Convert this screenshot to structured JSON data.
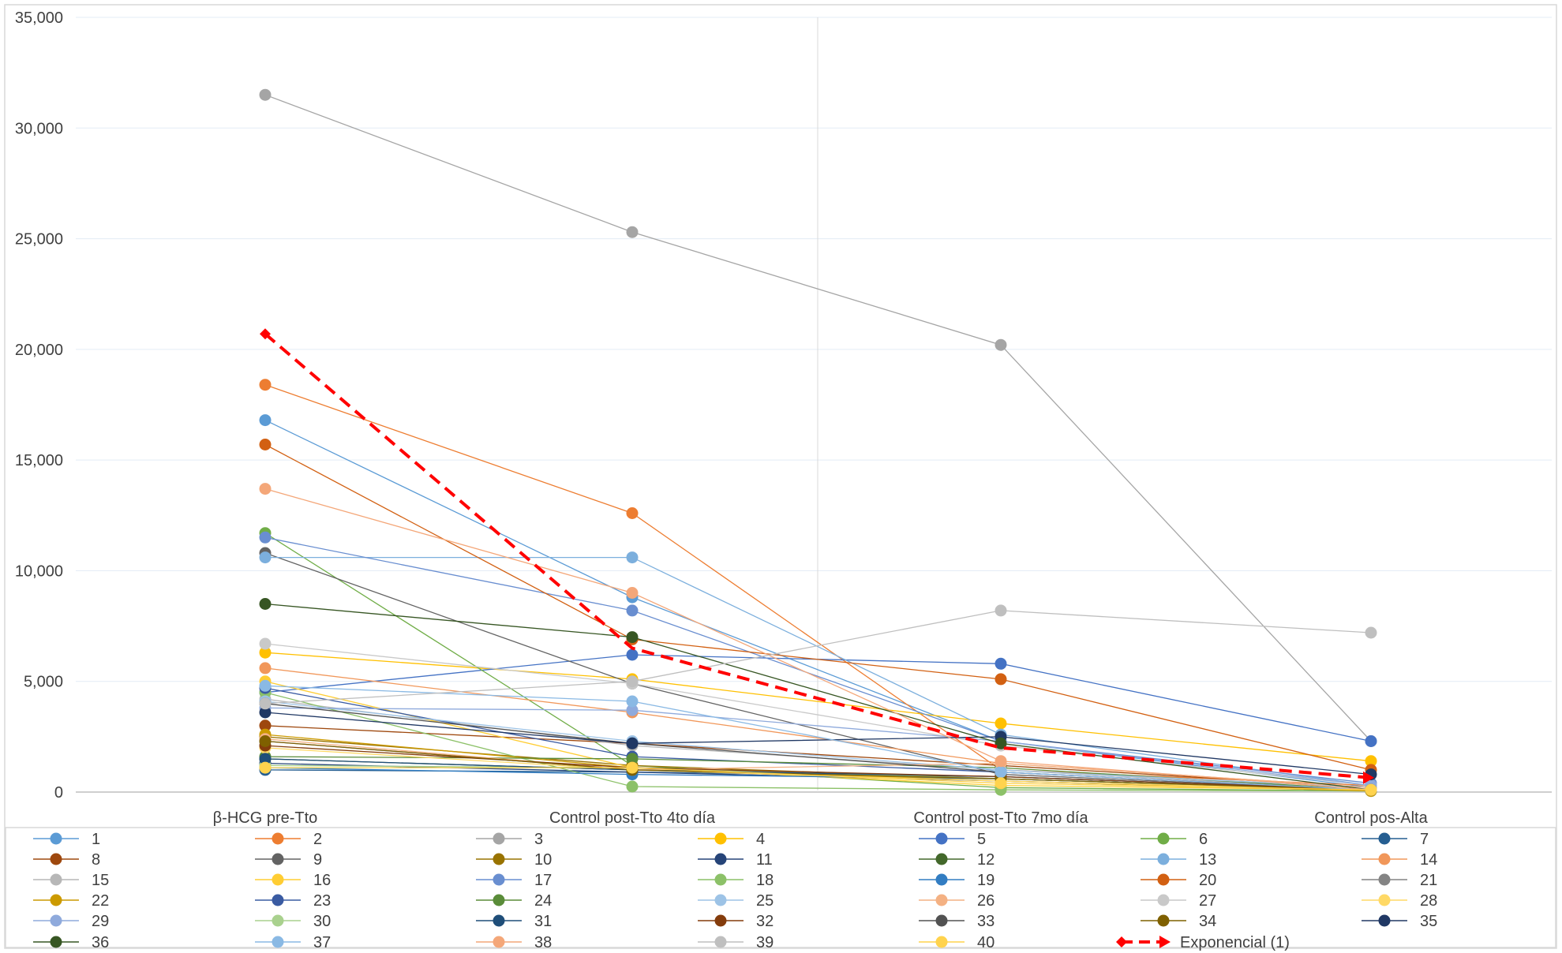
{
  "chart_data": {
    "type": "line",
    "title": "",
    "xlabel": "",
    "ylabel": "",
    "categories": [
      "β-HCG pre-Tto",
      "Control post-Tto 4to día",
      "Control post-Tto 7mo día",
      "Control pos-Alta"
    ],
    "y_ticks": [
      "0",
      "5,000",
      "10,000",
      "15,000",
      "20,000",
      "25,000",
      "30,000",
      "35,000"
    ],
    "ylim": [
      0,
      35000
    ],
    "grid": "horizontal",
    "legend_position": "bottom",
    "series": [
      {
        "name": "1",
        "color": "#5b9bd5",
        "values": [
          16800,
          8800,
          2300,
          200
        ]
      },
      {
        "name": "2",
        "color": "#ed7d31",
        "values": [
          18400,
          12600,
          1000,
          300
        ]
      },
      {
        "name": "3",
        "color": "#a5a5a5",
        "values": [
          31500,
          25300,
          20200,
          2300
        ]
      },
      {
        "name": "4",
        "color": "#ffc000",
        "values": [
          6300,
          5100,
          3100,
          1400
        ]
      },
      {
        "name": "5",
        "color": "#4472c4",
        "values": [
          4500,
          6200,
          5800,
          2300
        ]
      },
      {
        "name": "6",
        "color": "#70ad47",
        "values": [
          11700,
          1200,
          200,
          50
        ]
      },
      {
        "name": "7",
        "color": "#255e91",
        "values": [
          1000,
          900,
          700,
          100
        ]
      },
      {
        "name": "8",
        "color": "#9e480e",
        "values": [
          3000,
          2200,
          1200,
          200
        ]
      },
      {
        "name": "9",
        "color": "#636363",
        "values": [
          10800,
          4900,
          800,
          100
        ]
      },
      {
        "name": "10",
        "color": "#997300",
        "values": [
          2500,
          1200,
          600,
          100
        ]
      },
      {
        "name": "11",
        "color": "#264478",
        "values": [
          1300,
          900,
          500,
          50
        ]
      },
      {
        "name": "12",
        "color": "#43682b",
        "values": [
          1500,
          1000,
          600,
          100
        ]
      },
      {
        "name": "13",
        "color": "#7cafdd",
        "values": [
          10600,
          10600,
          2600,
          300
        ]
      },
      {
        "name": "14",
        "color": "#f1975a",
        "values": [
          5600,
          3600,
          1300,
          200
        ]
      },
      {
        "name": "15",
        "color": "#b7b7b7",
        "values": [
          4200,
          2100,
          1000,
          100
        ]
      },
      {
        "name": "16",
        "color": "#ffcd33",
        "values": [
          5000,
          1100,
          300,
          100
        ]
      },
      {
        "name": "17",
        "color": "#698ed0",
        "values": [
          11500,
          8200,
          2300,
          400
        ]
      },
      {
        "name": "18",
        "color": "#8cc168",
        "values": [
          4500,
          250,
          100,
          50
        ]
      },
      {
        "name": "19",
        "color": "#327dc2",
        "values": [
          1100,
          800,
          600,
          100
        ]
      },
      {
        "name": "20",
        "color": "#d26012",
        "values": [
          15700,
          6900,
          5100,
          1000
        ]
      },
      {
        "name": "21",
        "color": "#848484",
        "values": [
          2300,
          1000,
          500,
          100
        ]
      },
      {
        "name": "22",
        "color": "#cc9a00",
        "values": [
          2600,
          1100,
          500,
          50
        ]
      },
      {
        "name": "23",
        "color": "#3a5ba2",
        "values": [
          4700,
          1600,
          900,
          100
        ]
      },
      {
        "name": "24",
        "color": "#5a8c39",
        "values": [
          1600,
          1500,
          1100,
          100
        ]
      },
      {
        "name": "25",
        "color": "#9dc3e6",
        "values": [
          4100,
          2300,
          1000,
          200
        ]
      },
      {
        "name": "26",
        "color": "#f4b183",
        "values": [
          2400,
          1000,
          1300,
          200
        ]
      },
      {
        "name": "27",
        "color": "#c9c9c9",
        "values": [
          6700,
          4900,
          2100,
          300
        ]
      },
      {
        "name": "28",
        "color": "#ffd966",
        "values": [
          2000,
          1000,
          500,
          100
        ]
      },
      {
        "name": "29",
        "color": "#8faadc",
        "values": [
          3800,
          3700,
          2300,
          300
        ]
      },
      {
        "name": "30",
        "color": "#a9d18e",
        "values": [
          1200,
          1100,
          600,
          100
        ]
      },
      {
        "name": "31",
        "color": "#1f4e79",
        "values": [
          1500,
          1000,
          700,
          100
        ]
      },
      {
        "name": "32",
        "color": "#843c0c",
        "values": [
          2100,
          1100,
          700,
          100
        ]
      },
      {
        "name": "33",
        "color": "#525252",
        "values": [
          4000,
          2200,
          900,
          100
        ]
      },
      {
        "name": "34",
        "color": "#7f6000",
        "values": [
          2300,
          1000,
          600,
          100
        ]
      },
      {
        "name": "35",
        "color": "#203864",
        "values": [
          3600,
          2200,
          2500,
          800
        ]
      },
      {
        "name": "36",
        "color": "#375623",
        "values": [
          8500,
          7000,
          2200,
          100
        ]
      },
      {
        "name": "37",
        "color": "#8ab9e4",
        "values": [
          4800,
          4100,
          900,
          100
        ]
      },
      {
        "name": "38",
        "color": "#f4a779",
        "values": [
          13700,
          9000,
          1400,
          100
        ]
      },
      {
        "name": "39",
        "color": "#bfbfbf",
        "values": [
          4000,
          5000,
          8200,
          7200
        ]
      },
      {
        "name": "40",
        "color": "#ffd34d",
        "values": [
          1100,
          1100,
          400,
          100
        ]
      }
    ],
    "trendline": {
      "name": "Exponencial (1)",
      "color": "#ff0000",
      "values": [
        20700,
        6500,
        2000,
        650
      ]
    }
  }
}
